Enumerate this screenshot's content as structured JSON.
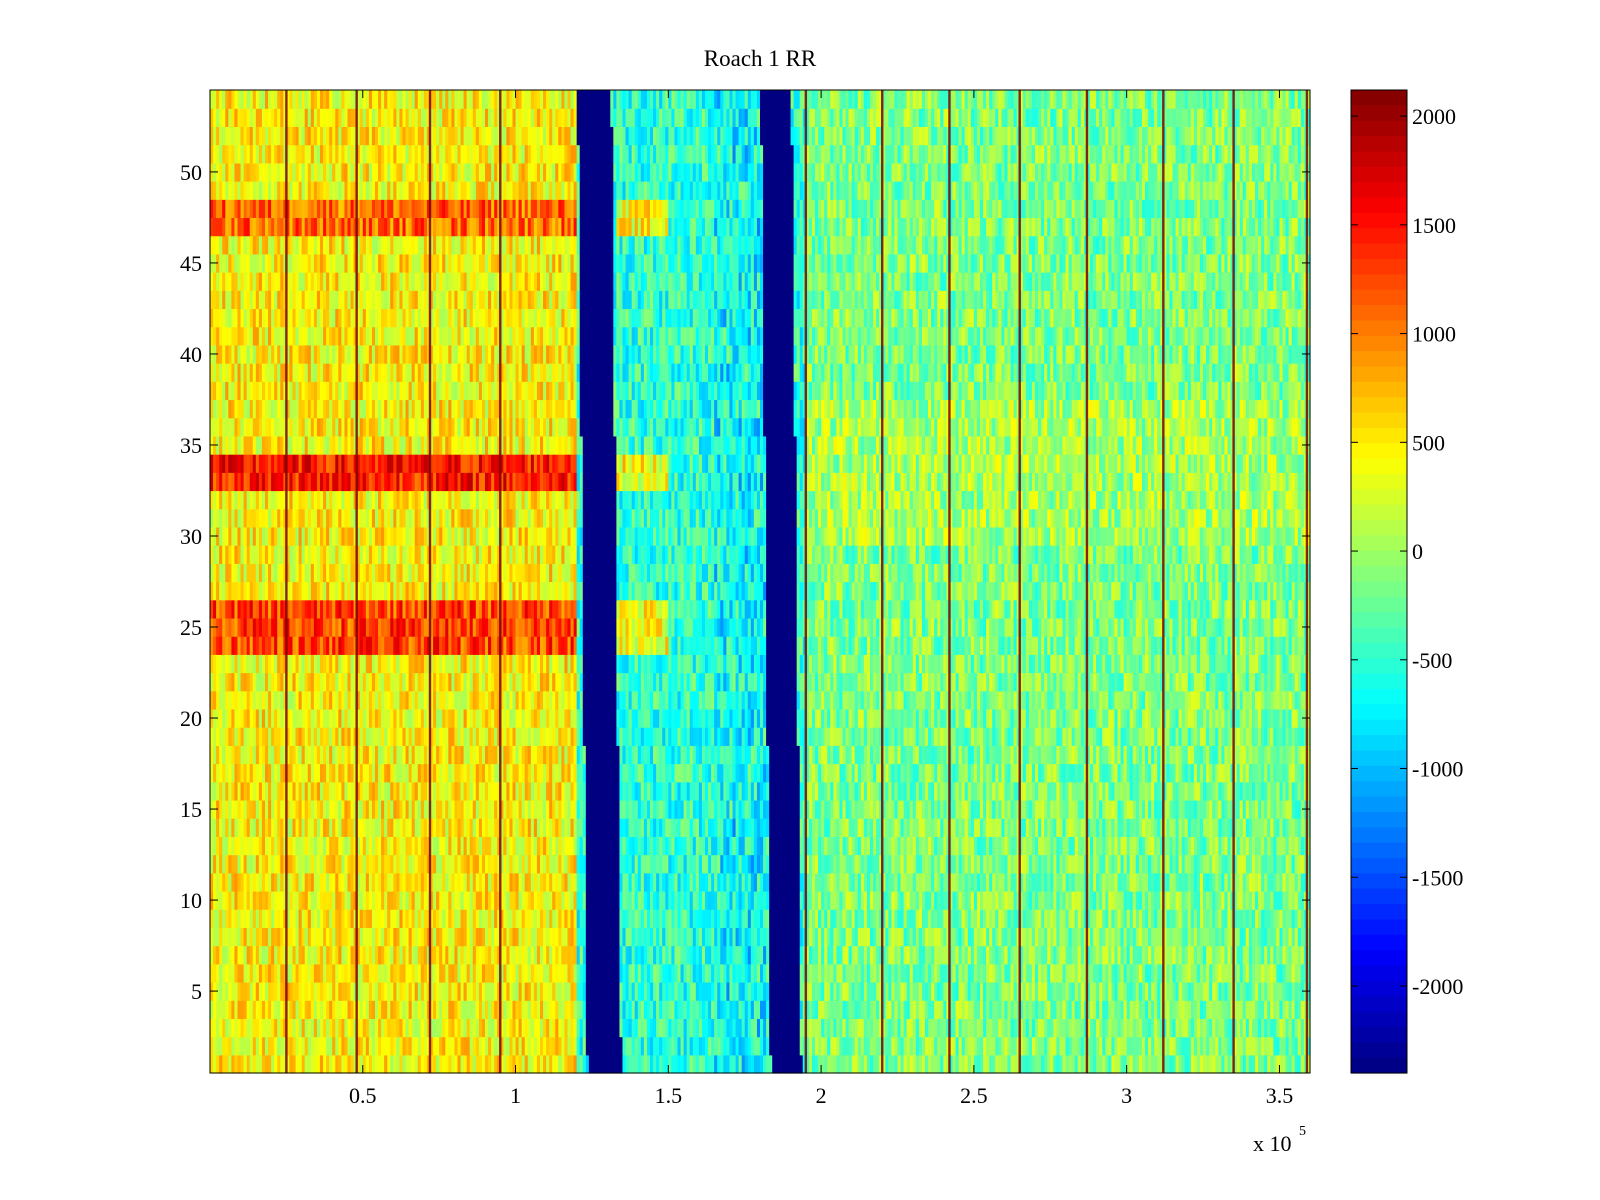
{
  "chart_data": {
    "type": "heatmap",
    "title": "Roach 1 RR",
    "xlabel": "",
    "ylabel": "",
    "x_exponent_label": {
      "base": "x 10",
      "exp": "5"
    },
    "xlim": [
      0,
      3.6
    ],
    "ylim": [
      0.5,
      54.5
    ],
    "x_ticks": [
      0.5,
      1,
      1.5,
      2,
      2.5,
      3,
      3.5
    ],
    "x_tick_labels": [
      "0.5",
      "1",
      "1.5",
      "2",
      "2.5",
      "3",
      "3.5"
    ],
    "y_ticks": [
      5,
      10,
      15,
      20,
      25,
      30,
      35,
      40,
      45,
      50
    ],
    "y_tick_labels": [
      "5",
      "10",
      "15",
      "20",
      "25",
      "30",
      "35",
      "40",
      "45",
      "50"
    ],
    "rows": 54,
    "colormap": "jet",
    "color_limits": [
      -2400,
      2120
    ],
    "colorbar_ticks": [
      2000,
      1500,
      1000,
      500,
      0,
      -500,
      -1000,
      -1500,
      -2000
    ],
    "colorbar_tick_labels": [
      "2000",
      "1500",
      "1000",
      "500",
      "0",
      "-500",
      "-1000",
      "-1500",
      "-2000"
    ],
    "features": {
      "saturated_bands_x": [
        [
          1.22,
          1.33
        ],
        [
          1.82,
          1.92
        ]
      ],
      "bright_rows": [
        [
          24,
          26,
          1250
        ],
        [
          33,
          34,
          1450
        ],
        [
          47,
          48,
          1100
        ]
      ],
      "dark_vertical_lines_x": [
        0.25,
        0.48,
        0.72,
        0.95,
        1.95,
        2.2,
        2.42,
        2.65,
        2.87,
        3.12,
        3.35,
        3.59
      ],
      "left_region_mean": 450,
      "middle_region_mean": -500,
      "right_region_mean": -150
    }
  }
}
